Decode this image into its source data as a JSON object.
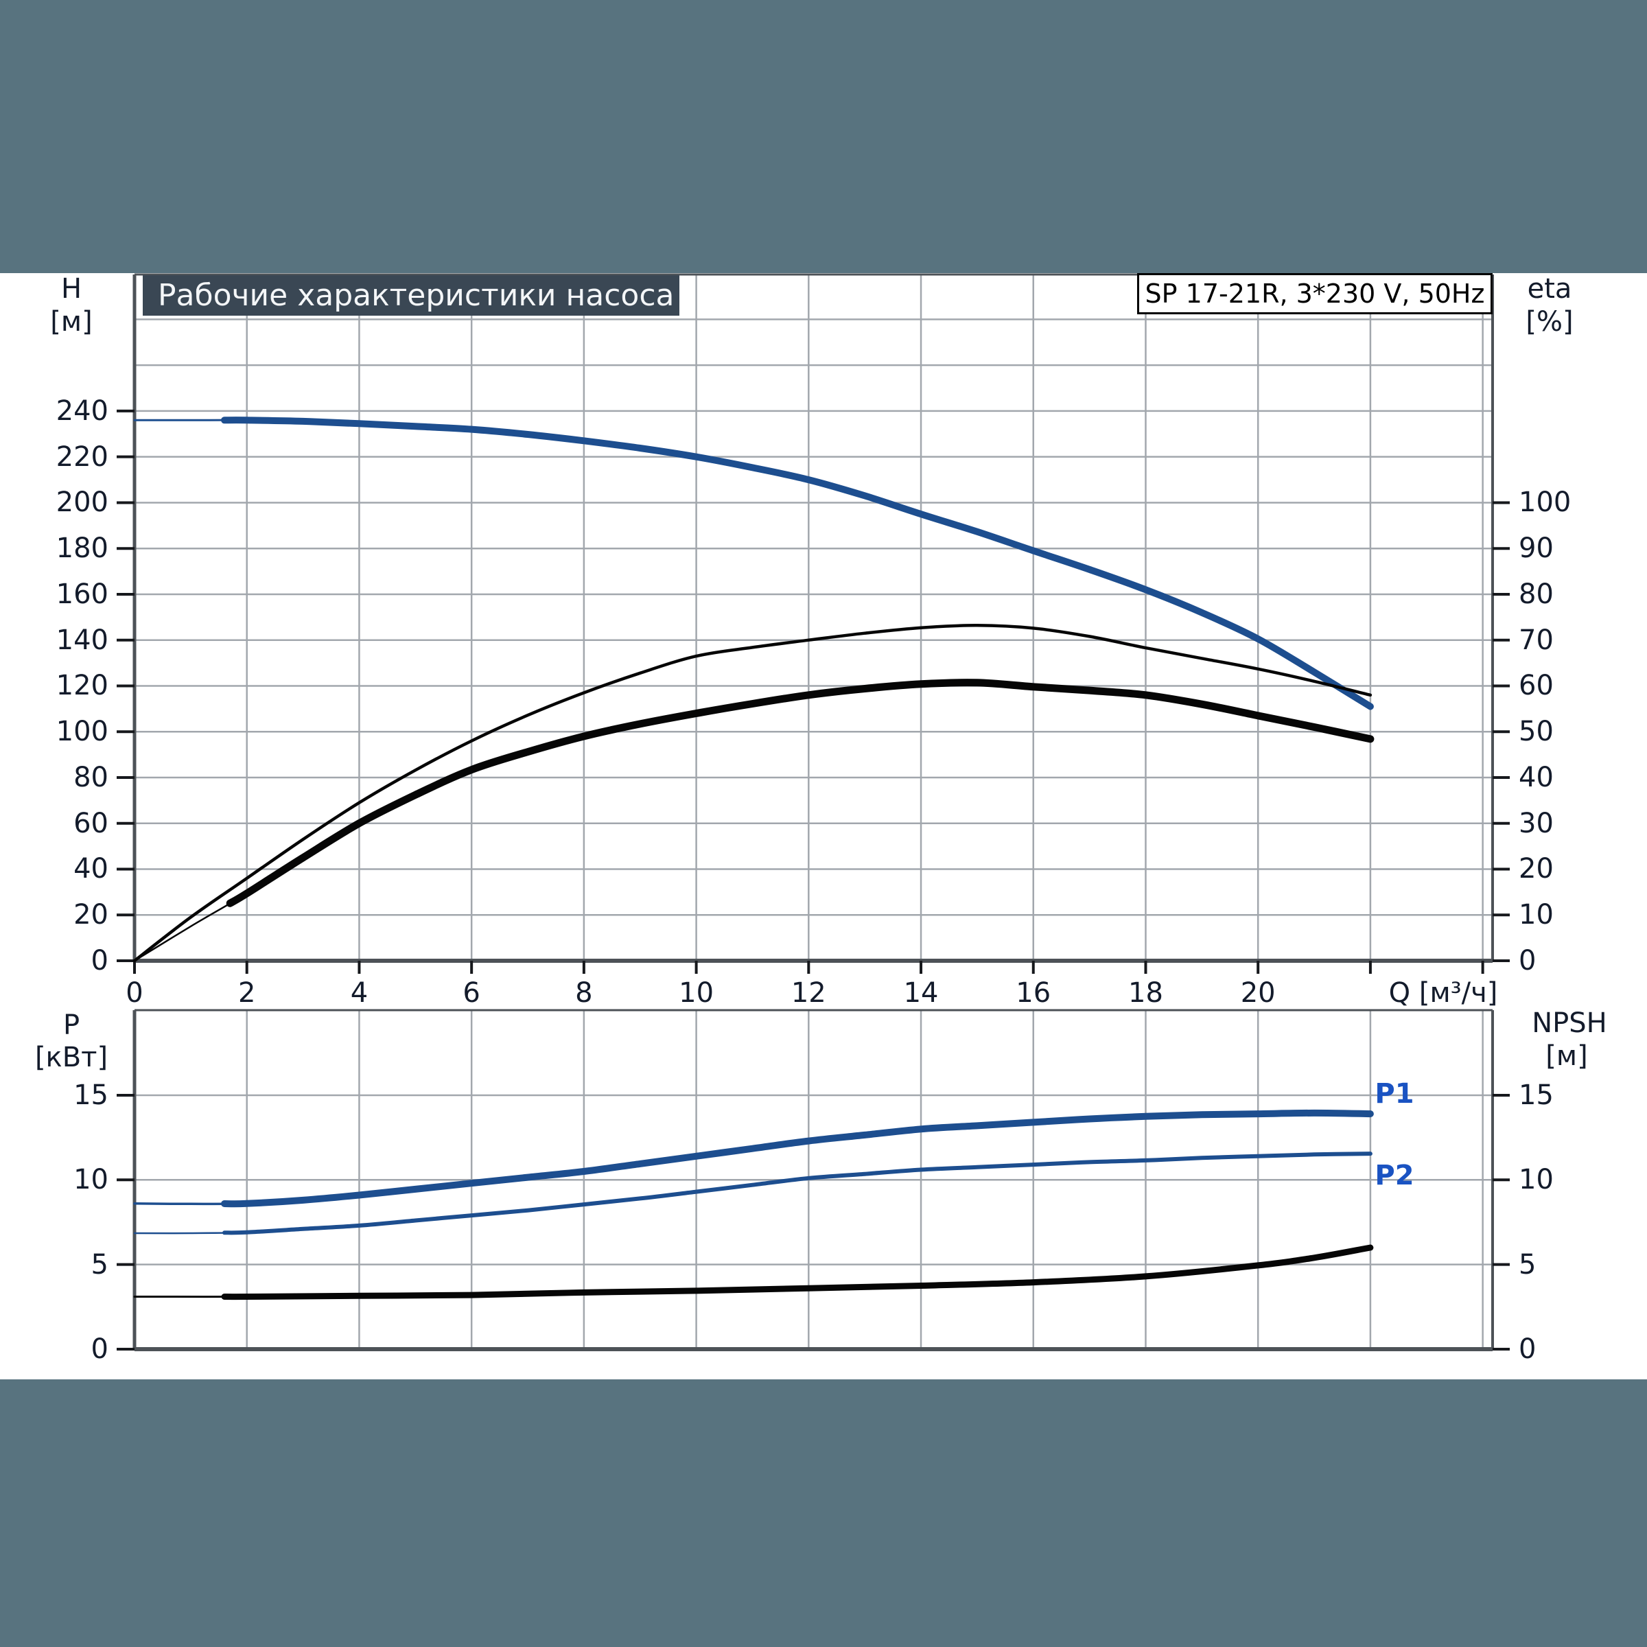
{
  "page": {
    "background": "#ffffff",
    "band_color": "#58737f",
    "title_box_bg": "#3a4754",
    "title_box_text_color": "#f4f6f8",
    "grid_color": "#a2a7ad",
    "border_color": "#4d5257",
    "tick_color": "#16181c",
    "tick_text_color": "#131b2b",
    "curve_blue": "#1d4e8f",
    "curve_black": "#060606",
    "series_label_blue": "#1a53c2"
  },
  "header": {
    "title": "Рабочие характеристики насоса",
    "model": "SP 17-21R, 3*230 V, 50Hz"
  },
  "chart_data": [
    {
      "id": "pump-performance",
      "type": "line",
      "x_axis": {
        "label": "Q [м³/ч]",
        "min": 0,
        "max": 24.2,
        "labeled_ticks": [
          0,
          2,
          4,
          6,
          8,
          10,
          12,
          14,
          16,
          18,
          20
        ],
        "unlabeled_ticks": [
          22,
          24
        ],
        "grid_step": 2
      },
      "y_left": {
        "label": "H",
        "unit": "[м]",
        "min": 0,
        "max": 300,
        "labeled_ticks": [
          0,
          20,
          40,
          60,
          80,
          100,
          120,
          140,
          160,
          180,
          200,
          220,
          240
        ],
        "grid_values": [
          20,
          40,
          60,
          80,
          100,
          120,
          140,
          160,
          180,
          200,
          220,
          240,
          260,
          280
        ]
      },
      "y_right": {
        "label": "eta",
        "unit": "[%]",
        "min": 0,
        "max": 100,
        "labeled_ticks": [
          0,
          10,
          20,
          30,
          40,
          50,
          60,
          70,
          80,
          90,
          100
        ]
      },
      "series": [
        {
          "name": "H",
          "axis": "left",
          "color": "#1d4e8f",
          "width": 10,
          "lead_in_width": 3,
          "thick_from": 1.6,
          "points": [
            [
              0,
              236
            ],
            [
              1,
              236
            ],
            [
              2,
              236
            ],
            [
              3,
              235.5
            ],
            [
              4,
              234.5
            ],
            [
              5,
              233.3
            ],
            [
              6,
              232
            ],
            [
              7,
              229.8
            ],
            [
              8,
              227
            ],
            [
              9,
              223.8
            ],
            [
              10,
              220
            ],
            [
              11,
              215.3
            ],
            [
              12,
              210
            ],
            [
              13,
              203
            ],
            [
              14,
              195
            ],
            [
              15,
              187.3
            ],
            [
              16,
              179
            ],
            [
              17,
              170.8
            ],
            [
              18,
              162
            ],
            [
              19,
              152
            ],
            [
              20,
              140.5
            ],
            [
              21,
              126
            ],
            [
              22,
              111
            ]
          ]
        },
        {
          "name": "eta-pump",
          "axis": "right",
          "color": "#060606",
          "width": 4.5,
          "lead_in_width": 4.5,
          "thick_from": null,
          "points": [
            [
              0,
              0
            ],
            [
              1,
              9.5
            ],
            [
              2,
              18
            ],
            [
              3,
              26.5
            ],
            [
              4,
              34.5
            ],
            [
              5,
              41.6
            ],
            [
              6,
              48
            ],
            [
              7,
              53.6
            ],
            [
              8,
              58.5
            ],
            [
              9,
              62.8
            ],
            [
              10,
              66.5
            ],
            [
              11,
              68.4
            ],
            [
              12,
              70
            ],
            [
              13,
              71.5
            ],
            [
              14,
              72.7
            ],
            [
              15,
              73.2
            ],
            [
              16,
              72.6
            ],
            [
              17,
              70.8
            ],
            [
              18,
              68.3
            ],
            [
              19,
              66
            ],
            [
              20,
              63.7
            ],
            [
              21,
              61
            ],
            [
              22,
              58
            ]
          ]
        },
        {
          "name": "eta-total",
          "axis": "right",
          "color": "#060606",
          "width": 11,
          "lead_in_width": 2.5,
          "thick_from": 1.7,
          "points": [
            [
              0,
              0
            ],
            [
              1,
              7.5
            ],
            [
              2,
              14.7
            ],
            [
              3,
              22.5
            ],
            [
              4,
              30
            ],
            [
              5,
              36.2
            ],
            [
              6,
              41.7
            ],
            [
              7,
              45.6
            ],
            [
              8,
              49
            ],
            [
              9,
              51.7
            ],
            [
              10,
              54
            ],
            [
              11,
              56.1
            ],
            [
              12,
              58
            ],
            [
              13,
              59.4
            ],
            [
              14,
              60.4
            ],
            [
              15,
              60.7
            ],
            [
              16,
              59.8
            ],
            [
              17,
              59
            ],
            [
              18,
              58
            ],
            [
              19,
              56
            ],
            [
              20,
              53.5
            ],
            [
              21,
              51
            ],
            [
              22,
              48.4
            ]
          ]
        }
      ]
    },
    {
      "id": "power-npsh",
      "type": "line",
      "x_axis": {
        "label": "",
        "min": 0,
        "max": 24.2,
        "grid_step": 2
      },
      "y_left": {
        "label": "P",
        "unit": "[кВт]",
        "min": 0,
        "max": 20,
        "labeled_ticks": [
          0,
          5,
          10,
          15
        ],
        "grid_values": [
          5,
          10,
          15
        ]
      },
      "y_right": {
        "label": "NPSH",
        "unit": "[м]",
        "min": 0,
        "max": 20,
        "labeled_ticks": [
          0,
          5,
          10,
          15
        ]
      },
      "series": [
        {
          "name": "P1",
          "axis": "left",
          "color": "#1d4e8f",
          "width": 10,
          "lead_in_width": 3.5,
          "thick_from": 1.6,
          "label": "P1",
          "points": [
            [
              0,
              8.6
            ],
            [
              1,
              8.58
            ],
            [
              2,
              8.6
            ],
            [
              3,
              8.8
            ],
            [
              4,
              9.1
            ],
            [
              5,
              9.45
            ],
            [
              6,
              9.8
            ],
            [
              7,
              10.15
            ],
            [
              8,
              10.5
            ],
            [
              9,
              10.95
            ],
            [
              10,
              11.4
            ],
            [
              11,
              11.85
            ],
            [
              12,
              12.3
            ],
            [
              13,
              12.65
            ],
            [
              14,
              13.0
            ],
            [
              15,
              13.2
            ],
            [
              16,
              13.4
            ],
            [
              17,
              13.6
            ],
            [
              18,
              13.75
            ],
            [
              19,
              13.85
            ],
            [
              20,
              13.9
            ],
            [
              21,
              13.95
            ],
            [
              22,
              13.9
            ]
          ]
        },
        {
          "name": "P2",
          "axis": "left",
          "color": "#1d4e8f",
          "width": 6,
          "lead_in_width": 2.5,
          "thick_from": 1.6,
          "label": "P2",
          "points": [
            [
              0,
              6.85
            ],
            [
              1,
              6.85
            ],
            [
              2,
              6.9
            ],
            [
              3,
              7.1
            ],
            [
              4,
              7.3
            ],
            [
              5,
              7.6
            ],
            [
              6,
              7.9
            ],
            [
              7,
              8.2
            ],
            [
              8,
              8.55
            ],
            [
              9,
              8.9
            ],
            [
              10,
              9.3
            ],
            [
              11,
              9.7
            ],
            [
              12,
              10.1
            ],
            [
              13,
              10.35
            ],
            [
              14,
              10.6
            ],
            [
              15,
              10.75
            ],
            [
              16,
              10.9
            ],
            [
              17,
              11.05
            ],
            [
              18,
              11.15
            ],
            [
              19,
              11.3
            ],
            [
              20,
              11.4
            ],
            [
              21,
              11.5
            ],
            [
              22,
              11.55
            ]
          ]
        },
        {
          "name": "NPSH",
          "axis": "right",
          "color": "#060606",
          "width": 9,
          "lead_in_width": 3,
          "thick_from": 1.6,
          "points": [
            [
              0,
              3.1
            ],
            [
              2,
              3.1
            ],
            [
              4,
              3.15
            ],
            [
              6,
              3.2
            ],
            [
              8,
              3.35
            ],
            [
              10,
              3.45
            ],
            [
              12,
              3.6
            ],
            [
              14,
              3.75
            ],
            [
              16,
              3.95
            ],
            [
              18,
              4.3
            ],
            [
              20,
              4.95
            ],
            [
              21,
              5.4
            ],
            [
              22,
              6.0
            ]
          ]
        }
      ]
    }
  ]
}
